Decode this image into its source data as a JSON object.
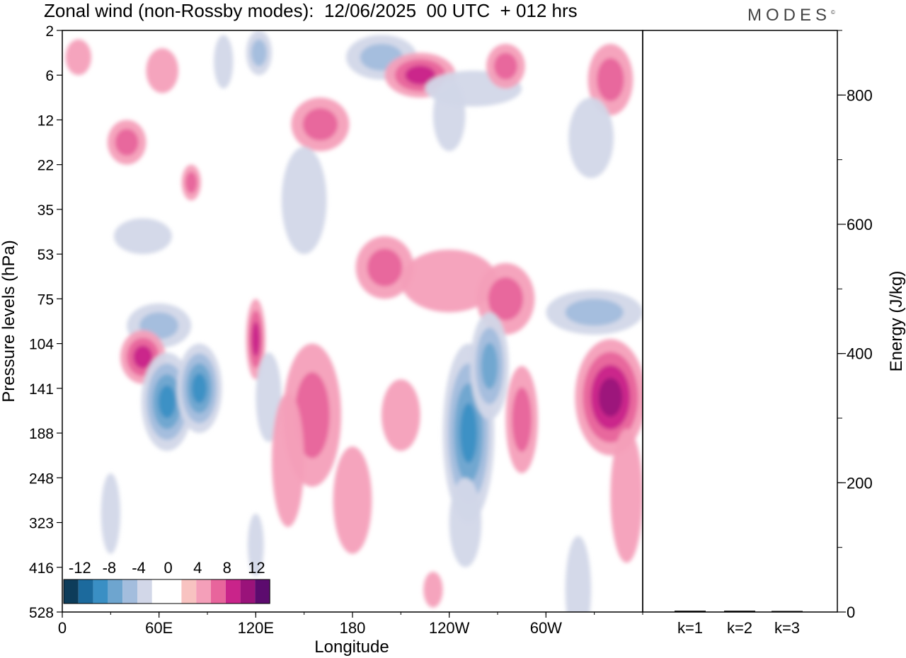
{
  "header": {
    "title": "Zonal wind (non-Rossby modes):  12/06/2025  00 UTC  + 012 hrs",
    "logo": "MODES",
    "logo_mark": "©"
  },
  "colors": {
    "scale": [
      "#0d3c5a",
      "#1c6a9d",
      "#3a8fc4",
      "#6ea5cf",
      "#a3bddd",
      "#d2d7e8",
      "#ffffff",
      "#ffffff",
      "#f8c3c1",
      "#f49fb9",
      "#e8659c",
      "#c9248a",
      "#9a137a",
      "#5c0b6e"
    ],
    "frame": "#000000"
  },
  "chart_data": [
    {
      "type": "heatmap",
      "title": "Zonal wind (non-Rossby modes):  12/06/2025  00 UTC  + 012 hrs",
      "xlabel": "Longitude",
      "ylabel": "Pressure levels (hPa)",
      "x_ticks": [
        "0",
        "60E",
        "120E",
        "180",
        "120W",
        "60W"
      ],
      "x_tick_degrees": [
        0,
        60,
        120,
        180,
        240,
        300
      ],
      "xlim": [
        0,
        360
      ],
      "y_ticks": [
        "2",
        "6",
        "12",
        "22",
        "35",
        "53",
        "75",
        "104",
        "141",
        "188",
        "248",
        "323",
        "416",
        "528"
      ],
      "legend_labels": [
        "-12",
        "-8",
        "-4",
        "0",
        "4",
        "8",
        "12"
      ],
      "legend_placement": "bottom-left",
      "blobs": [
        {
          "lon": 10,
          "lev": 0.6,
          "w": 8,
          "h": 0.4,
          "v": 4
        },
        {
          "lon": 40,
          "lev": 2.5,
          "w": 12,
          "h": 0.5,
          "v": 5
        },
        {
          "lon": 62,
          "lev": 0.9,
          "w": 10,
          "h": 0.5,
          "v": 4
        },
        {
          "lon": 100,
          "lev": 0.7,
          "w": 6,
          "h": 0.6,
          "v": -4
        },
        {
          "lon": 122,
          "lev": 0.5,
          "w": 8,
          "h": 0.5,
          "v": -5
        },
        {
          "lon": 160,
          "lev": 2.1,
          "w": 18,
          "h": 0.6,
          "v": 6
        },
        {
          "lon": 198,
          "lev": 0.6,
          "w": 22,
          "h": 0.5,
          "v": -6
        },
        {
          "lon": 222,
          "lev": 1.0,
          "w": 22,
          "h": 0.5,
          "v": 7
        },
        {
          "lon": 255,
          "lev": 1.3,
          "w": 30,
          "h": 0.4,
          "v": -4
        },
        {
          "lon": 240,
          "lev": 1.9,
          "w": 10,
          "h": 0.8,
          "v": -4
        },
        {
          "lon": 275,
          "lev": 0.8,
          "w": 12,
          "h": 0.5,
          "v": 5
        },
        {
          "lon": 340,
          "lev": 1.1,
          "w": 14,
          "h": 0.8,
          "v": 5
        },
        {
          "lon": 328,
          "lev": 2.4,
          "w": 14,
          "h": 0.9,
          "v": -4
        },
        {
          "lon": 150,
          "lev": 3.8,
          "w": 14,
          "h": 1.2,
          "v": -4
        },
        {
          "lon": 50,
          "lev": 4.6,
          "w": 18,
          "h": 0.4,
          "v": -4
        },
        {
          "lon": 80,
          "lev": 3.4,
          "w": 6,
          "h": 0.4,
          "v": 5
        },
        {
          "lon": 200,
          "lev": 5.3,
          "w": 18,
          "h": 0.7,
          "v": 5
        },
        {
          "lon": 240,
          "lev": 5.6,
          "w": 30,
          "h": 0.7,
          "v": 4
        },
        {
          "lon": 275,
          "lev": 6.0,
          "w": 18,
          "h": 0.8,
          "v": 5
        },
        {
          "lon": 330,
          "lev": 6.3,
          "w": 30,
          "h": 0.5,
          "v": -6
        },
        {
          "lon": 60,
          "lev": 6.6,
          "w": 20,
          "h": 0.5,
          "v": -5
        },
        {
          "lon": 50,
          "lev": 7.3,
          "w": 14,
          "h": 0.6,
          "v": 8
        },
        {
          "lon": 65,
          "lev": 8.3,
          "w": 16,
          "h": 1.1,
          "v": -10
        },
        {
          "lon": 85,
          "lev": 8.0,
          "w": 14,
          "h": 1.0,
          "v": -10
        },
        {
          "lon": 120,
          "lev": 6.9,
          "w": 6,
          "h": 0.9,
          "v": 7
        },
        {
          "lon": 128,
          "lev": 8.2,
          "w": 8,
          "h": 1.0,
          "v": -4
        },
        {
          "lon": 155,
          "lev": 8.6,
          "w": 18,
          "h": 1.6,
          "v": 6
        },
        {
          "lon": 140,
          "lev": 9.6,
          "w": 10,
          "h": 1.5,
          "v": 4
        },
        {
          "lon": 180,
          "lev": 10.5,
          "w": 12,
          "h": 1.2,
          "v": 4
        },
        {
          "lon": 210,
          "lev": 8.6,
          "w": 12,
          "h": 0.8,
          "v": 4
        },
        {
          "lon": 252,
          "lev": 9.0,
          "w": 16,
          "h": 2.0,
          "v": -9
        },
        {
          "lon": 265,
          "lev": 7.5,
          "w": 12,
          "h": 1.2,
          "v": -7
        },
        {
          "lon": 285,
          "lev": 8.7,
          "w": 10,
          "h": 1.2,
          "v": 6
        },
        {
          "lon": 340,
          "lev": 8.2,
          "w": 22,
          "h": 1.3,
          "v": 9
        },
        {
          "lon": 350,
          "lev": 10.4,
          "w": 10,
          "h": 1.5,
          "v": 4
        },
        {
          "lon": 30,
          "lev": 10.8,
          "w": 6,
          "h": 0.9,
          "v": -4
        },
        {
          "lon": 320,
          "lev": 12.5,
          "w": 8,
          "h": 1.2,
          "v": -4
        },
        {
          "lon": 250,
          "lev": 11.0,
          "w": 10,
          "h": 1.0,
          "v": -4
        },
        {
          "lon": 230,
          "lev": 12.5,
          "w": 6,
          "h": 0.4,
          "v": 4
        },
        {
          "lon": 120,
          "lev": 11.5,
          "w": 5,
          "h": 0.7,
          "v": -4
        }
      ]
    },
    {
      "type": "bar",
      "categories": [
        "k=1",
        "k=2",
        "k=3"
      ],
      "values": [
        2,
        2,
        1
      ],
      "ylabel": "Energy (J/kg)",
      "ylim": [
        0,
        900
      ],
      "y_ticks": [
        "0",
        "200",
        "400",
        "600",
        "800"
      ],
      "y_tick_values": [
        0,
        200,
        400,
        600,
        800
      ],
      "y_minor_step": 100
    }
  ]
}
